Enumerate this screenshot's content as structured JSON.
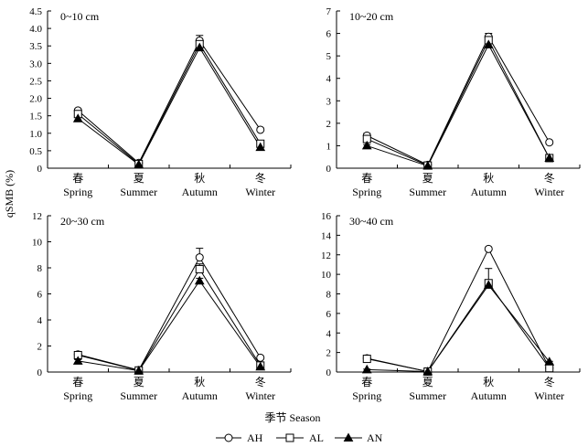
{
  "figure": {
    "y_axis_label": "qSMB (%)",
    "x_axis_label": "季节 Season"
  },
  "legend": [
    {
      "key": "AH",
      "marker": "circle-open"
    },
    {
      "key": "AL",
      "marker": "square-open"
    },
    {
      "key": "AN",
      "marker": "triangle-filled"
    }
  ],
  "chart_data": [
    {
      "type": "line",
      "panel_label": "0~10 cm",
      "categories": [
        {
          "cn": "春",
          "en": "Spring"
        },
        {
          "cn": "夏",
          "en": "Summer"
        },
        {
          "cn": "秋",
          "en": "Autumn"
        },
        {
          "cn": "冬",
          "en": "Winter"
        }
      ],
      "ylim": [
        0,
        4.5
      ],
      "yticks": [
        "0",
        "0.5",
        "1.0",
        "1.5",
        "2.0",
        "2.5",
        "3.0",
        "3.5",
        "4.0",
        "4.5"
      ],
      "series": [
        {
          "name": "AH",
          "values": [
            1.65,
            0.15,
            3.65,
            1.1
          ],
          "err": [
            0.05,
            0.05,
            0.15,
            0.05
          ]
        },
        {
          "name": "AL",
          "values": [
            1.55,
            0.12,
            3.55,
            0.7
          ],
          "err": [
            0.05,
            0.05,
            0.1,
            0.05
          ]
        },
        {
          "name": "AN",
          "values": [
            1.42,
            0.1,
            3.45,
            0.6
          ],
          "err": [
            0.05,
            0.05,
            0.05,
            0.05
          ]
        }
      ]
    },
    {
      "type": "line",
      "panel_label": "10~20 cm",
      "categories": [
        {
          "cn": "春",
          "en": "Spring"
        },
        {
          "cn": "夏",
          "en": "Summer"
        },
        {
          "cn": "秋",
          "en": "Autumn"
        },
        {
          "cn": "冬",
          "en": "Winter"
        }
      ],
      "ylim": [
        0,
        7
      ],
      "yticks": [
        "0",
        "1",
        "2",
        "3",
        "4",
        "5",
        "6",
        "7"
      ],
      "series": [
        {
          "name": "AH",
          "values": [
            1.45,
            0.15,
            5.85,
            1.15
          ],
          "err": [
            0.1,
            0.05,
            0.15,
            0.05
          ]
        },
        {
          "name": "AL",
          "values": [
            1.3,
            0.12,
            5.7,
            0.45
          ],
          "err": [
            0.1,
            0.05,
            0.15,
            0.05
          ]
        },
        {
          "name": "AN",
          "values": [
            1.0,
            0.1,
            5.5,
            0.45
          ],
          "err": [
            0.05,
            0.05,
            0.1,
            0.05
          ]
        }
      ]
    },
    {
      "type": "line",
      "panel_label": "20~30 cm",
      "categories": [
        {
          "cn": "春",
          "en": "Spring"
        },
        {
          "cn": "夏",
          "en": "Summer"
        },
        {
          "cn": "秋",
          "en": "Autumn"
        },
        {
          "cn": "冬",
          "en": "Winter"
        }
      ],
      "ylim": [
        0,
        12
      ],
      "yticks": [
        "0",
        "2",
        "4",
        "6",
        "8",
        "10",
        "12"
      ],
      "series": [
        {
          "name": "AH",
          "values": [
            1.35,
            0.15,
            8.8,
            1.1
          ],
          "err": [
            0.1,
            0.05,
            0.7,
            0.05
          ]
        },
        {
          "name": "AL",
          "values": [
            1.3,
            0.12,
            7.9,
            0.5
          ],
          "err": [
            0.1,
            0.05,
            0.4,
            0.05
          ]
        },
        {
          "name": "AN",
          "values": [
            0.85,
            0.1,
            7.0,
            0.4
          ],
          "err": [
            0.1,
            0.05,
            0.2,
            0.05
          ]
        }
      ]
    },
    {
      "type": "line",
      "panel_label": "30~40 cm",
      "categories": [
        {
          "cn": "春",
          "en": "Spring"
        },
        {
          "cn": "夏",
          "en": "Summer"
        },
        {
          "cn": "秋",
          "en": "Autumn"
        },
        {
          "cn": "冬",
          "en": "Winter"
        }
      ],
      "ylim": [
        0,
        16
      ],
      "yticks": [
        "0",
        "2",
        "4",
        "6",
        "8",
        "10",
        "12",
        "14",
        "16"
      ],
      "series": [
        {
          "name": "AH",
          "values": [
            1.4,
            0.05,
            12.6,
            0.4
          ],
          "err": [
            0.05,
            0.05,
            0.1,
            0.05
          ]
        },
        {
          "name": "AL",
          "values": [
            1.35,
            0.05,
            9.1,
            0.4
          ],
          "err": [
            0.05,
            0.05,
            1.5,
            0.05
          ]
        },
        {
          "name": "AN",
          "values": [
            0.25,
            0.05,
            8.9,
            1.05
          ],
          "err": [
            0.05,
            0.05,
            0.1,
            0.05
          ]
        }
      ]
    }
  ]
}
